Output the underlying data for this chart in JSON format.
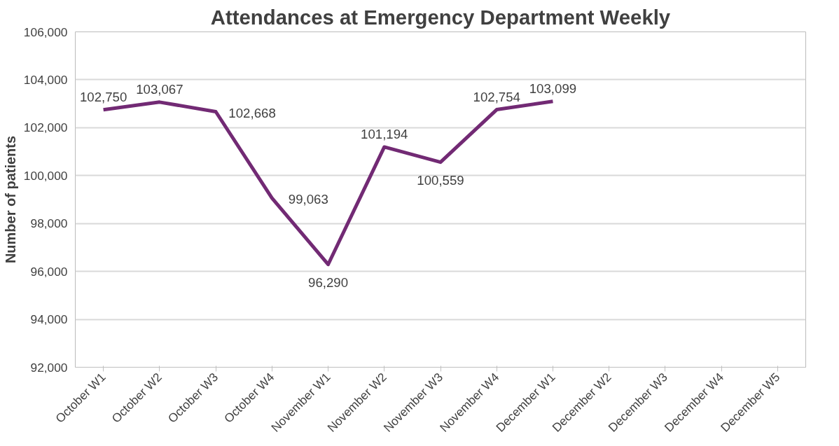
{
  "chart_data": {
    "type": "line",
    "title": "Attendances at Emergency Department Weekly",
    "ylabel": "Number of patients",
    "categories": [
      "October W1",
      "October W2",
      "October W3",
      "October W4",
      "November W1",
      "November W2",
      "November W3",
      "November W4",
      "December W1",
      "December W2",
      "December W3",
      "December W4",
      "December W5"
    ],
    "series": [
      {
        "color": "#722a74",
        "values": [
          102750,
          103067,
          102668,
          99063,
          96290,
          101194,
          100559,
          102754,
          103099,
          null,
          null,
          null,
          null
        ],
        "value_labels": [
          "102,750",
          "103,067",
          "102,668",
          "99,063",
          "96,290",
          "101,194",
          "100,559",
          "102,754",
          "103,099",
          null,
          null,
          null,
          null
        ]
      }
    ],
    "ylim": [
      92000,
      106000
    ],
    "yticks": [
      {
        "value": 92000,
        "label": "92,000"
      },
      {
        "value": 94000,
        "label": "94,000"
      },
      {
        "value": 96000,
        "label": "96,000"
      },
      {
        "value": 98000,
        "label": "98,000"
      },
      {
        "value": 100000,
        "label": "100,000"
      },
      {
        "value": 102000,
        "label": "102,000"
      },
      {
        "value": 104000,
        "label": "104,000"
      },
      {
        "value": 106000,
        "label": "106,000"
      }
    ],
    "grid": "y",
    "marker": "none",
    "line_style": "solid"
  }
}
